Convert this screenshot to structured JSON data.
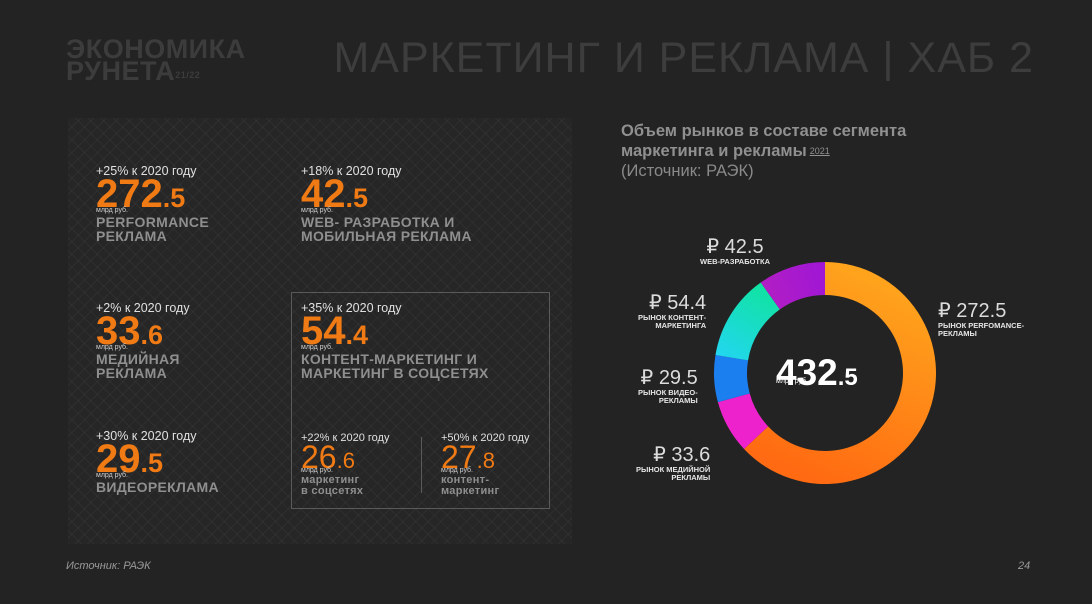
{
  "header": {
    "logo_line1": "ЭКОНОМИКА",
    "logo_line2": "РУНЕТА",
    "logo_year": "21/22",
    "title": "МАРКЕТИНГ И РЕКЛАМА | ХАБ 2"
  },
  "metrics": [
    {
      "growth": "+25% к 2020 году",
      "value_int": "272",
      "value_frac": ".5",
      "unit": "млрд руб.",
      "label_line1": "PERFORMANCE",
      "label_line2": "РЕКЛАМА"
    },
    {
      "growth": "+18% к 2020 году",
      "value_int": "42",
      "value_frac": ".5",
      "unit": "млрд руб.",
      "label_line1": "WEB- РАЗРАБОТКА И",
      "label_line2": "МОБИЛЬНАЯ РЕКЛАМА"
    },
    {
      "growth": "+2% к 2020 году",
      "value_int": "33",
      "value_frac": ".6",
      "unit": "млрд руб.",
      "label_line1": "МЕДИЙНАЯ",
      "label_line2": "РЕКЛАМА"
    },
    {
      "growth": "+35% к 2020 году",
      "value_int": "54",
      "value_frac": ".4",
      "unit": "млрд руб.",
      "label_line1": "КОНТЕНТ-МАРКЕТИНГ И",
      "label_line2": "МАРКЕТИНГ В СОЦСЕТЯХ"
    },
    {
      "growth": "+30% к 2020 году",
      "value_int": "29",
      "value_frac": ".5",
      "unit": "млрд руб.",
      "label_line1": "ВИДЕОРЕКЛАМА",
      "label_line2": ""
    },
    {
      "growth": "+22% к 2020 году",
      "value_int": "26",
      "value_frac": ".6",
      "unit": "млрд руб.",
      "label_line1": "маркетинг",
      "label_line2": "в соцсетях"
    },
    {
      "growth": "+50% к 2020 году",
      "value_int": "27",
      "value_frac": ".8",
      "unit": "млрд руб.",
      "label_line1": "контент-",
      "label_line2": "маркетинг"
    }
  ],
  "chart_title": "Объем рынков в составе сегмента маркетинга и рекламы",
  "chart_year": "2021",
  "chart_source": "(Источник: РАЭК)",
  "chart_data": {
    "type": "pie",
    "variant": "donut",
    "center_value_int": "432",
    "center_value_frac": ".5",
    "center_unit": "млрд руб.",
    "slices": [
      {
        "name_line1": "РЫНОК PERFOMANCE-",
        "name_line2": "РЕКЛАМЫ",
        "value": 272.5,
        "value_label": "₽ 272.5",
        "color": "#ff6a12",
        "color2": "#ffa21c"
      },
      {
        "name_line1": "РЫНОК МЕДИЙНОЙ",
        "name_line2": "РЕКЛАМЫ",
        "value": 33.6,
        "value_label": "₽ 33.6",
        "color": "#ee22cc",
        "color2": "#ee22cc"
      },
      {
        "name_line1": "РЫНОК ВИДЕО-",
        "name_line2": "РЕКЛАМЫ",
        "value": 29.5,
        "value_label": "₽ 29.5",
        "color": "#1c7ff0",
        "color2": "#1c7ff0"
      },
      {
        "name_line1": "РЫНОК КОНТЕНТ-",
        "name_line2": "МАРКЕТИНГА",
        "value": 54.4,
        "value_label": "₽ 54.4",
        "color": "#10e3a0",
        "color2": "#22d6f0"
      },
      {
        "name_line1": "WEB-РАЗРАБОТКА",
        "name_line2": "",
        "value": 42.5,
        "value_label": "₽ 42.5",
        "color": "#9e16d6",
        "color2": "#b21ec4"
      }
    ]
  },
  "footer": {
    "source": "Источник: РАЭК",
    "page": "24"
  }
}
